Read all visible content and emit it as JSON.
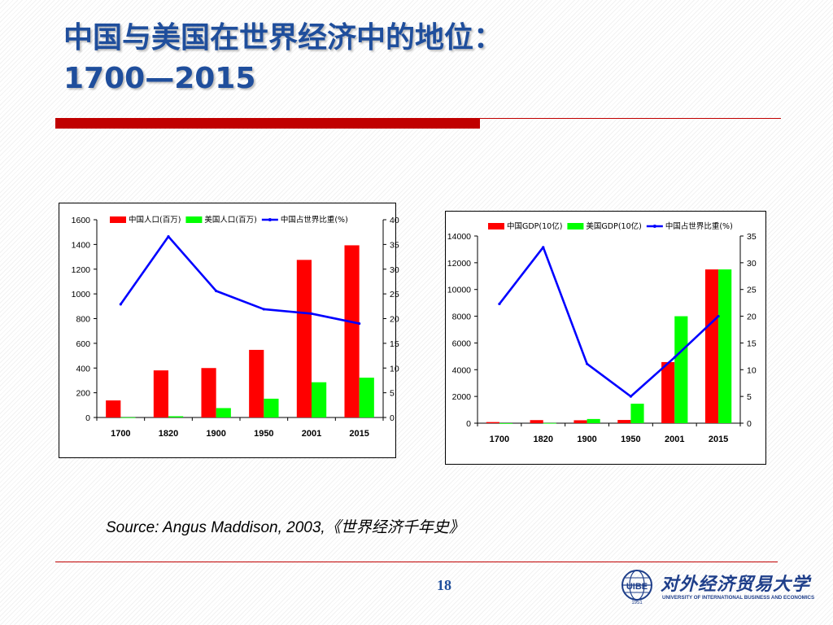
{
  "slide": {
    "title_line1": "中国与美国在世界经济中的地位：",
    "title_line2": "1700—2015",
    "source": "Source: Angus Maddison, 2003,《世界经济千年史》",
    "page_number": "18",
    "logo": {
      "cn": "对外经济贸易大学",
      "en": "UNIVERSITY OF INTERNATIONAL BUSINESS AND ECONOMICS",
      "abbr": "UIBE",
      "year": "1951"
    },
    "colors": {
      "title": "#1f4e9c",
      "rule": "#c00000"
    }
  },
  "chart_data": [
    {
      "type": "bar",
      "title": "",
      "categories": [
        "1700",
        "1820",
        "1900",
        "1950",
        "2001",
        "2015"
      ],
      "series": [
        {
          "name": "中国人口(百万)",
          "kind": "bar",
          "axis": "left",
          "color": "#ff0000",
          "values": [
            138,
            381,
            400,
            547,
            1275,
            1393
          ]
        },
        {
          "name": "美国人口(百万)",
          "kind": "bar",
          "axis": "left",
          "color": "#00ff00",
          "values": [
            1,
            10,
            76,
            152,
            285,
            322
          ]
        },
        {
          "name": "中国占世界比重(%)",
          "kind": "line",
          "axis": "right",
          "color": "#0000ff",
          "values": [
            22.9,
            36.6,
            25.6,
            21.9,
            21.0,
            19.0
          ]
        }
      ],
      "y_left": {
        "min": 0,
        "max": 1600,
        "ticks": [
          "0",
          "200",
          "400",
          "600",
          "800",
          "1000",
          "1200",
          "1400",
          "1600"
        ]
      },
      "y_right": {
        "min": 0,
        "max": 40,
        "ticks": [
          "0",
          "5",
          "10",
          "15",
          "20",
          "25",
          "30",
          "35",
          "40"
        ]
      },
      "grid": false,
      "legend": "top"
    },
    {
      "type": "bar",
      "title": "",
      "categories": [
        "1700",
        "1820",
        "1900",
        "1950",
        "2001",
        "2015"
      ],
      "series": [
        {
          "name": "中国GDP(10亿)",
          "kind": "bar",
          "axis": "left",
          "color": "#ff0000",
          "values": [
            83,
            229,
            218,
            240,
            4570,
            11500
          ]
        },
        {
          "name": "美国GDP(10亿)",
          "kind": "bar",
          "axis": "left",
          "color": "#00ff00",
          "values": [
            1,
            13,
            312,
            1456,
            8000,
            11500
          ]
        },
        {
          "name": "中国占世界比重(%)",
          "kind": "line",
          "axis": "right",
          "color": "#0000ff",
          "values": [
            22.3,
            32.9,
            11.1,
            5.0,
            12.3,
            20.0
          ]
        }
      ],
      "y_left": {
        "min": 0,
        "max": 14000,
        "ticks": [
          "0",
          "2000",
          "4000",
          "6000",
          "8000",
          "10000",
          "12000",
          "14000"
        ]
      },
      "y_right": {
        "min": 0,
        "max": 35,
        "ticks": [
          "0",
          "5",
          "10",
          "15",
          "20",
          "25",
          "30",
          "35"
        ]
      },
      "grid": false,
      "legend": "top"
    }
  ]
}
